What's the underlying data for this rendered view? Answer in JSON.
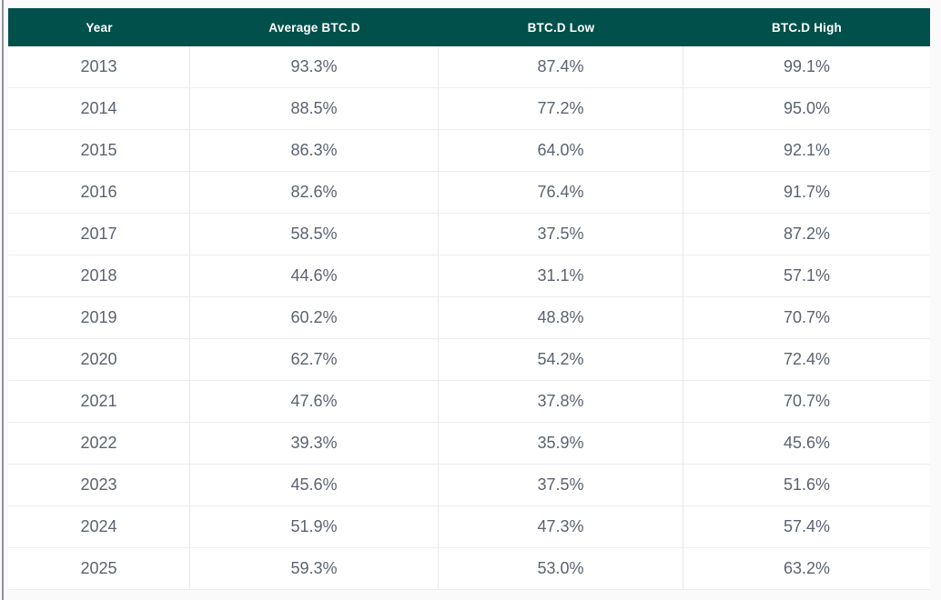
{
  "page": {
    "background_color": "#fbfafb",
    "left_edge_line_color": "#90929a"
  },
  "table": {
    "header_bg_color": "#02504c",
    "header_text_color": "#ffffff",
    "cell_text_color": "#5a6370",
    "columns": [
      "Year",
      "Average BTC.D",
      "BTC.D Low",
      "BTC.D High"
    ],
    "rows": [
      {
        "year": "2013",
        "avg": "93.3%",
        "low": "87.4%",
        "high": "99.1%"
      },
      {
        "year": "2014",
        "avg": "88.5%",
        "low": "77.2%",
        "high": "95.0%"
      },
      {
        "year": "2015",
        "avg": "86.3%",
        "low": "64.0%",
        "high": "92.1%"
      },
      {
        "year": "2016",
        "avg": "82.6%",
        "low": "76.4%",
        "high": "91.7%"
      },
      {
        "year": "2017",
        "avg": "58.5%",
        "low": "37.5%",
        "high": "87.2%"
      },
      {
        "year": "2018",
        "avg": "44.6%",
        "low": "31.1%",
        "high": "57.1%"
      },
      {
        "year": "2019",
        "avg": "60.2%",
        "low": "48.8%",
        "high": "70.7%"
      },
      {
        "year": "2020",
        "avg": "62.7%",
        "low": "54.2%",
        "high": "72.4%"
      },
      {
        "year": "2021",
        "avg": "47.6%",
        "low": "37.8%",
        "high": "70.7%"
      },
      {
        "year": "2022",
        "avg": "39.3%",
        "low": "35.9%",
        "high": "45.6%"
      },
      {
        "year": "2023",
        "avg": "45.6%",
        "low": "37.5%",
        "high": "51.6%"
      },
      {
        "year": "2024",
        "avg": "51.9%",
        "low": "47.3%",
        "high": "57.4%"
      },
      {
        "year": "2025",
        "avg": "59.3%",
        "low": "53.0%",
        "high": "63.2%"
      }
    ]
  },
  "chart_data": {
    "type": "table",
    "columns": [
      "Year",
      "Average BTC.D",
      "BTC.D Low",
      "BTC.D High"
    ],
    "unit": "%",
    "categories": [
      2013,
      2014,
      2015,
      2016,
      2017,
      2018,
      2019,
      2020,
      2021,
      2022,
      2023,
      2024,
      2025
    ],
    "series": [
      {
        "name": "Average BTC.D",
        "values": [
          93.3,
          88.5,
          86.3,
          82.6,
          58.5,
          44.6,
          60.2,
          62.7,
          47.6,
          39.3,
          45.6,
          51.9,
          59.3
        ]
      },
      {
        "name": "BTC.D Low",
        "values": [
          87.4,
          77.2,
          64.0,
          76.4,
          37.5,
          31.1,
          48.8,
          54.2,
          37.8,
          35.9,
          37.5,
          47.3,
          53.0
        ]
      },
      {
        "name": "BTC.D High",
        "values": [
          99.1,
          95.0,
          92.1,
          91.7,
          87.2,
          57.1,
          70.7,
          72.4,
          70.7,
          45.6,
          51.6,
          57.4,
          63.2
        ]
      }
    ]
  }
}
